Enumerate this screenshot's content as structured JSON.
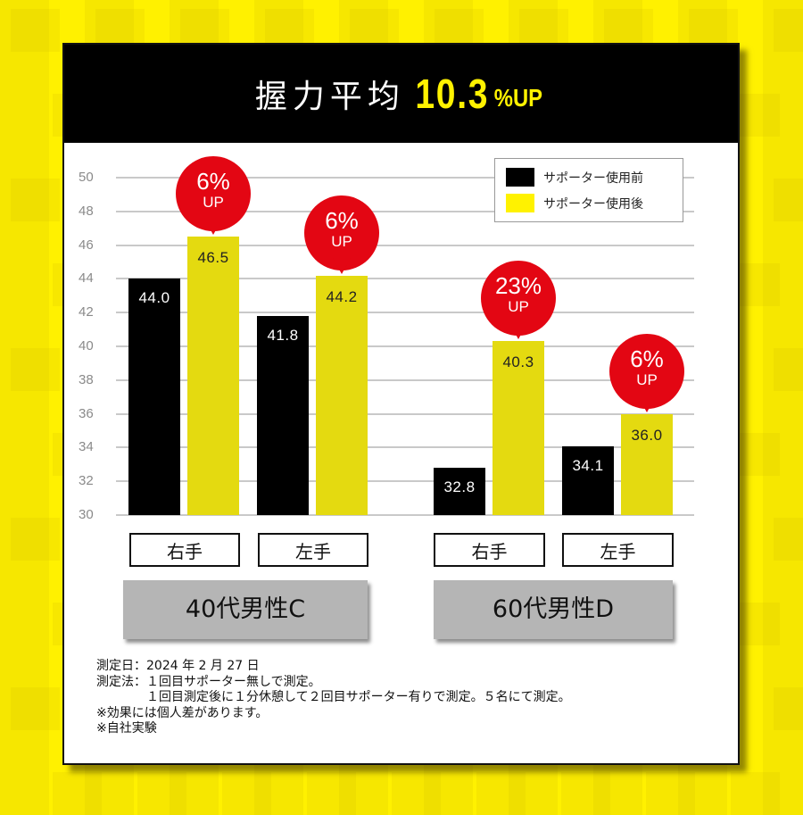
{
  "header": {
    "title_prefix": "握力平均",
    "title_number": "10.3",
    "title_suffix": "%UP"
  },
  "legend": {
    "items": [
      {
        "label": "サポーター使用前",
        "color": "#000000"
      },
      {
        "label": "サポーター使用後",
        "color": "#fff200"
      }
    ]
  },
  "y_axis": {
    "ticks": [
      "50",
      "48",
      "46",
      "44",
      "42",
      "40",
      "38",
      "36",
      "34",
      "32",
      "30"
    ]
  },
  "groups": [
    {
      "label": "40代男性C",
      "hands": [
        "右手",
        "左手"
      ]
    },
    {
      "label": "60代男性D",
      "hands": [
        "右手",
        "左手"
      ]
    }
  ],
  "bars": [
    {
      "group": "40代男性C",
      "hand": "右手",
      "before": "44.0",
      "after": "46.5",
      "increase": "6%",
      "up": "UP"
    },
    {
      "group": "40代男性C",
      "hand": "左手",
      "before": "41.8",
      "after": "44.2",
      "increase": "6%",
      "up": "UP"
    },
    {
      "group": "60代男性D",
      "hand": "右手",
      "before": "32.8",
      "after": "40.3",
      "increase": "23%",
      "up": "UP"
    },
    {
      "group": "60代男性D",
      "hand": "左手",
      "before": "34.1",
      "after": "36.0",
      "increase": "6%",
      "up": "UP"
    }
  ],
  "notes": [
    "測定日：2024 年 2 月 27 日",
    "測定法：１回目サポーター無しで測定。",
    "　　　　１回目測定後に１分休憩して２回目サポーター有りで測定。５名にて測定。",
    "※効果には個人差があります。",
    "※自社実験"
  ],
  "colors": {
    "background": "#fff100",
    "before_bar": "#000000",
    "after_bar": "#e4da10",
    "bubble": "#e30613",
    "title_highlight": "#fff200"
  },
  "chart_data": {
    "type": "bar",
    "title": "握力平均 10.3%UP",
    "categories": [
      "40代男性C 右手",
      "40代男性C 左手",
      "60代男性D 右手",
      "60代男性D 左手"
    ],
    "series": [
      {
        "name": "サポーター使用前",
        "values": [
          44.0,
          41.8,
          32.8,
          34.1
        ]
      },
      {
        "name": "サポーター使用後",
        "values": [
          46.5,
          44.2,
          40.3,
          36.0
        ]
      }
    ],
    "annotations": [
      "6% UP",
      "6% UP",
      "23% UP",
      "6% UP"
    ],
    "xlabel": "",
    "ylabel": "",
    "ylim": [
      30,
      50
    ],
    "yticks": [
      30,
      32,
      34,
      36,
      38,
      40,
      42,
      44,
      46,
      48,
      50
    ],
    "grid": true,
    "legend_position": "top-right"
  }
}
